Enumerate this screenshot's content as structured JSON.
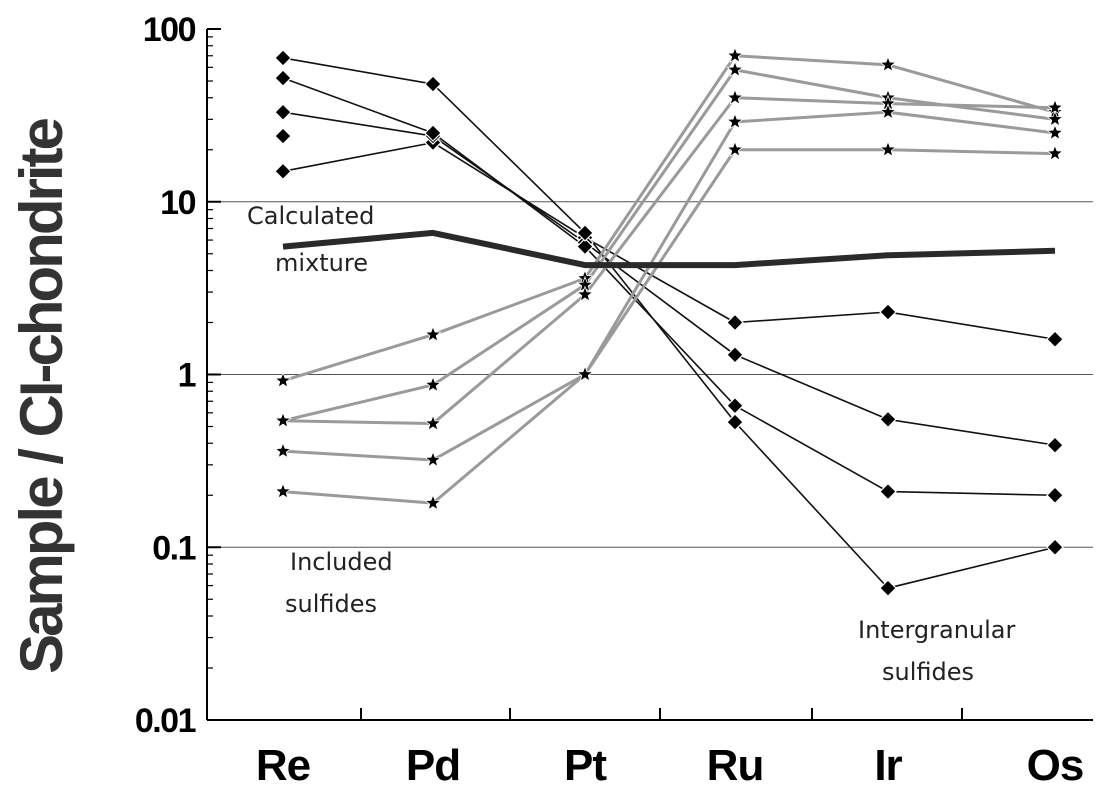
{
  "chart_data": {
    "type": "line",
    "ylabel": "Sample / CI-chondrite",
    "yscale": "log",
    "ylim": [
      0.01,
      100
    ],
    "yticks": [
      {
        "value": 0.01,
        "label": "0.01"
      },
      {
        "value": 0.1,
        "label": "0.1"
      },
      {
        "value": 1,
        "label": "1"
      },
      {
        "value": 10,
        "label": "10"
      },
      {
        "value": 100,
        "label": "100"
      }
    ],
    "gridlines": [
      0.1,
      1,
      10
    ],
    "categories": [
      "Re",
      "Pd",
      "Pt",
      "Ru",
      "Ir",
      "Os"
    ],
    "series": [
      {
        "group": "intergranular",
        "marker": "diamond",
        "color": "#111111",
        "values": [
          15,
          22,
          6.2,
          2.0,
          2.3,
          1.6
        ]
      },
      {
        "group": "intergranular",
        "marker": "diamond",
        "color": "#111111",
        "values": [
          33,
          24,
          5.8,
          1.3,
          0.55,
          0.39
        ]
      },
      {
        "group": "intergranular",
        "marker": "diamond",
        "color": "#111111",
        "values": [
          52,
          25,
          5.5,
          0.66,
          0.21,
          0.2
        ]
      },
      {
        "group": "intergranular",
        "marker": "diamond",
        "color": "#111111",
        "values": [
          68,
          48,
          6.6,
          0.53,
          0.058,
          0.1
        ]
      },
      {
        "group": "intergranular",
        "marker": "diamond",
        "color": "#111111",
        "values": [
          24,
          null,
          null,
          null,
          null,
          null
        ]
      },
      {
        "group": "included",
        "marker": "star",
        "color": "#9a9a9a",
        "values": [
          0.92,
          1.7,
          3.6,
          70,
          62,
          33
        ]
      },
      {
        "group": "included",
        "marker": "star",
        "color": "#9a9a9a",
        "values": [
          0.54,
          0.87,
          3.3,
          58,
          40,
          30
        ]
      },
      {
        "group": "included",
        "marker": "star",
        "color": "#9a9a9a",
        "values": [
          0.54,
          0.52,
          2.9,
          40,
          37,
          35
        ]
      },
      {
        "group": "included",
        "marker": "star",
        "color": "#9a9a9a",
        "values": [
          0.36,
          0.32,
          1.0,
          29,
          33,
          25
        ]
      },
      {
        "group": "included",
        "marker": "star",
        "color": "#9a9a9a",
        "values": [
          0.21,
          0.18,
          1.0,
          20,
          20,
          19
        ]
      },
      {
        "group": "mixture",
        "marker": "none",
        "color": "#2a2a2a",
        "thick": true,
        "values": [
          5.5,
          6.6,
          4.3,
          4.3,
          4.9,
          5.2
        ]
      }
    ],
    "annotations": [
      {
        "id": "calculated-mixture",
        "lines": [
          "Calculated",
          "mixture"
        ]
      },
      {
        "id": "included-sulfides",
        "lines": [
          "Included",
          "sulfides"
        ]
      },
      {
        "id": "intergranular-sulfides",
        "lines": [
          "Intergranular",
          "sulfides"
        ]
      }
    ]
  }
}
